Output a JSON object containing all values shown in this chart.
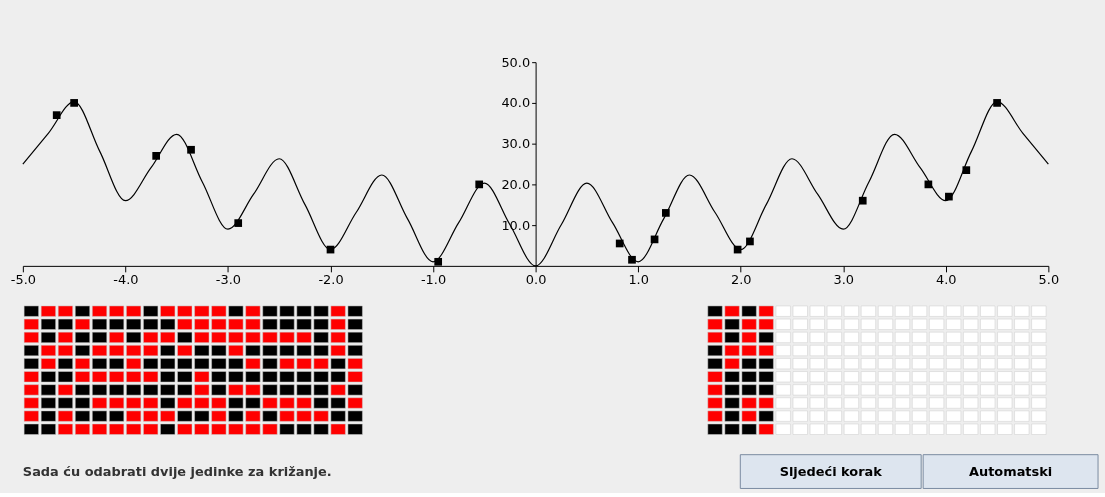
{
  "chart_data": {
    "type": "line",
    "xlim": [
      -5,
      5
    ],
    "ylim": [
      0,
      50
    ],
    "grid": false,
    "legend": false,
    "xticks": [
      {
        "value": -5,
        "label": "-5.0"
      },
      {
        "value": -4,
        "label": "-4.0"
      },
      {
        "value": -3,
        "label": "-3.0"
      },
      {
        "value": -2,
        "label": "-2.0"
      },
      {
        "value": -1,
        "label": "-1.0"
      },
      {
        "value": 0,
        "label": "0.0"
      },
      {
        "value": 1,
        "label": "1.0"
      },
      {
        "value": 2,
        "label": "2.0"
      },
      {
        "value": 3,
        "label": "3.0"
      },
      {
        "value": 4,
        "label": "4.0"
      },
      {
        "value": 5,
        "label": "5.0"
      }
    ],
    "yticks": [
      {
        "value": 10,
        "label": "10.0"
      },
      {
        "value": 20,
        "label": "20.0"
      },
      {
        "value": 30,
        "label": "30.0"
      },
      {
        "value": 40,
        "label": "40.0"
      },
      {
        "value": 50,
        "label": "50.0"
      }
    ],
    "annotations": [
      "Sada ću odabrati dvije jedinke za križanje.",
      "Sljedeći korak",
      "Automatski"
    ],
    "series": [
      {
        "type": "line",
        "color": "#000000",
        "marker": "none",
        "x": [
          -5,
          -4.75,
          -4.5,
          -4.25,
          -4,
          -3.75,
          -3.5,
          -3.25,
          -3,
          -2.75,
          -2.5,
          -2.25,
          -2,
          -1.75,
          -1.5,
          -1.25,
          -1,
          -0.75,
          -0.5,
          -0.25,
          0,
          0.25,
          0.5,
          0.75,
          1,
          1.25,
          1.5,
          1.75,
          2,
          2.25,
          2.5,
          2.75,
          3,
          3.25,
          3.5,
          3.75,
          4,
          4.25,
          4.5,
          4.75,
          5
        ],
        "values": [
          25,
          32.6,
          40.3,
          28.1,
          16,
          24.1,
          32.3,
          20.6,
          9,
          17.6,
          26.3,
          15.1,
          4,
          13.1,
          22.3,
          11.6,
          1,
          10.6,
          20.3,
          10.1,
          0,
          10.1,
          20.3,
          10.6,
          1,
          11.6,
          22.3,
          13.1,
          4,
          15.1,
          26.3,
          17.6,
          9,
          20.6,
          32.3,
          24.1,
          16,
          28.1,
          40.3,
          32.6,
          25
        ]
      },
      {
        "type": "scatter",
        "color": "#000000",
        "marker": "square",
        "x": [
          -4.67,
          -4.5,
          -3.7,
          -3.36,
          -2.9,
          -2.0,
          -0.95,
          -0.55,
          0.82,
          0.94,
          1.16,
          1.27,
          1.97,
          2.09,
          3.19,
          3.83,
          4.03,
          4.2,
          4.5
        ],
        "values": [
          37,
          40,
          27,
          28.5,
          10.5,
          4,
          1,
          20,
          5.5,
          1.5,
          6.5,
          13,
          4,
          6,
          16,
          20,
          17,
          23.5,
          40
        ]
      }
    ]
  }
}
